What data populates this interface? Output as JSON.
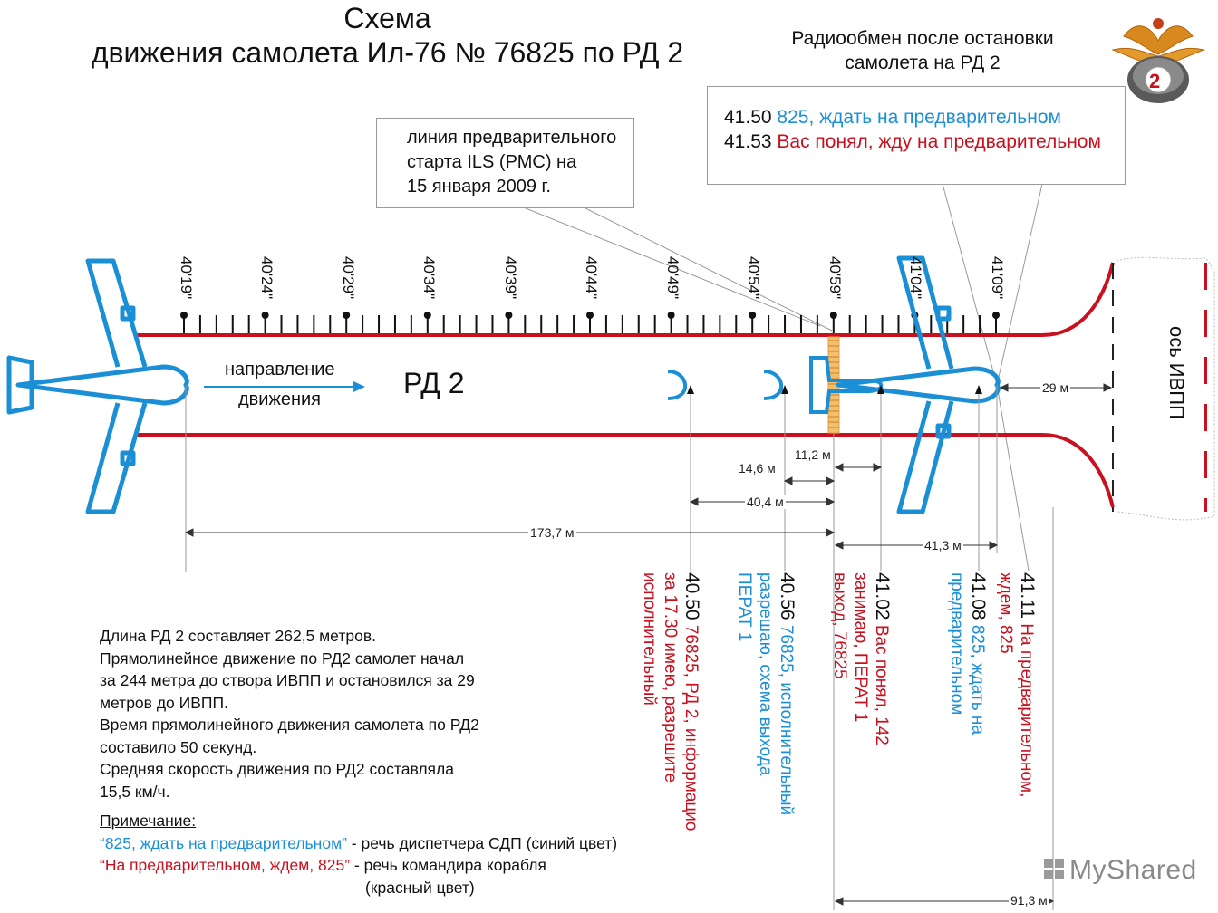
{
  "title_line1": "Схема",
  "title_line2": "движения самолета Ил-76 № 76825 по РД 2",
  "radio_title_line1": "Радиообмен после остановки",
  "radio_title_line2": "самолета на РД 2",
  "radio_exchange": [
    {
      "time": "41.50",
      "text": "825, ждать на предварительном",
      "color": "#1b8fd6"
    },
    {
      "time": "41.53",
      "text": "Вас понял, жду на предварительном",
      "color": "#c8101e"
    }
  ],
  "callout_lines": [
    "линия предварительного",
    "старта ILS (РМС) на",
    "15 января 2009 г."
  ],
  "timeline_labels": [
    "40'19\"",
    "40'24\"",
    "40'29\"",
    "40'34\"",
    "40'39\"",
    "40'44\"",
    "40'49\"",
    "40'54\"",
    "40'59\"",
    "41'04\"",
    "41'09\""
  ],
  "direction_line1": "направление",
  "direction_line2": "движения",
  "taxiway_label": "РД 2",
  "runway_axis_label": "ось ИВПП",
  "badge_number": "2",
  "measurements": {
    "d29": "29 м",
    "d11_2": "11,2 м",
    "d14_6": "14,6 м",
    "d40_4": "40,4 м",
    "d173_7": "173,7 м",
    "d41_3": "41,3 м",
    "d91_3": "91,3 м"
  },
  "events": [
    {
      "time": "40.50",
      "text_lines": [
        "76825, РД 2, информацио",
        "за 17.30 имею, разрешите",
        "исполнительный"
      ],
      "color": "#c8101e"
    },
    {
      "time": "40.56",
      "text_lines": [
        "76825, исполнительный",
        "разрешаю, схема выхода",
        "ПЕРАТ 1"
      ],
      "color": "#1b8fd6"
    },
    {
      "time": "41.02",
      "text_lines": [
        "Вас понял, 142",
        "занимаю, ПЕРАТ 1",
        "выход, 76825"
      ],
      "color": "#c8101e"
    },
    {
      "time": "41.08",
      "text_lines": [
        "825, ждать на",
        "предварительном"
      ],
      "color": "#1b8fd6"
    },
    {
      "time": "41.11",
      "text_lines": [
        "На предварительном,",
        "ждем, 825"
      ],
      "color": "#c8101e"
    }
  ],
  "notes": [
    "Длина РД 2 составляет 262,5 метров.",
    "Прямолинейное движение по РД2 самолет начал",
    "за 244 метра до створа ИВПП и остановился за 29",
    "метров до ИВПП.",
    "Время прямолинейного движения самолета по РД2",
    "составило 50 секунд.",
    "Средняя скорость движения по РД2 составляла",
    "15,5 км/ч."
  ],
  "note_heading": "Примечание:",
  "note_lines": [
    {
      "quote": "“825, ждать на предварительном”",
      "desc": " - речь диспетчера СДП (синий цвет)",
      "color": "#1b8fd6"
    },
    {
      "quote": "“На предварительном, ждем, 825”",
      "desc": " - речь командира корабля",
      "color": "#c8101e"
    }
  ],
  "note_last": "(красный цвет)",
  "watermark": "MyShared",
  "colors": {
    "aircraft": "#1b8fd6",
    "edge_lines": "#c8101e",
    "start_line": "#e8a040",
    "text": "#111111"
  }
}
